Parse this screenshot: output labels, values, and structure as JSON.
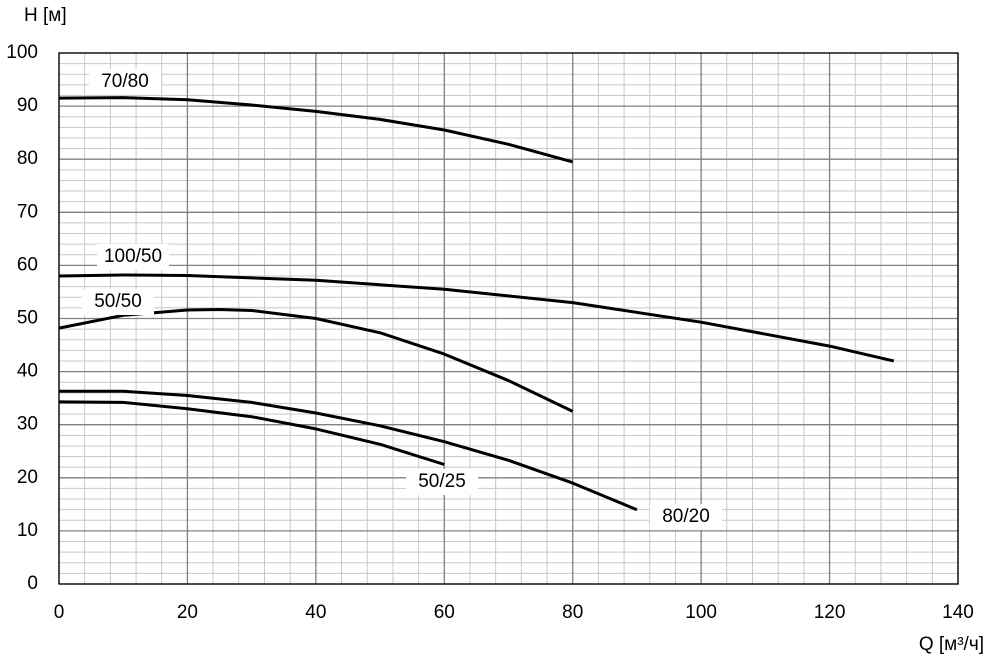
{
  "chart_data": {
    "type": "line",
    "x_label": "Q [м³/ч]",
    "y_label": "H [м]",
    "xlim": [
      0,
      140
    ],
    "xticks": [
      0,
      20,
      40,
      60,
      80,
      100,
      120,
      140
    ],
    "ylim": [
      0,
      100
    ],
    "yticks": [
      0,
      10,
      20,
      30,
      40,
      50,
      60,
      70,
      80,
      90,
      100
    ],
    "grid": true,
    "series": [
      {
        "name": "70/80",
        "color": "#000000",
        "x": [
          0,
          10,
          20,
          30,
          40,
          50,
          60,
          70,
          80
        ],
        "values": [
          91.5,
          91.6,
          91.2,
          90.2,
          89,
          87.5,
          85.5,
          82.8,
          79.5
        ]
      },
      {
        "name": "100/50",
        "color": "#000000",
        "x": [
          0,
          10,
          20,
          40,
          60,
          80,
          100,
          120,
          130
        ],
        "values": [
          58,
          58.2,
          58.1,
          57.2,
          55.5,
          53,
          49.3,
          44.8,
          42
        ]
      },
      {
        "name": "50/50",
        "color": "#000000",
        "x": [
          0,
          10,
          20,
          25,
          30,
          40,
          50,
          60,
          70,
          80
        ],
        "values": [
          48.2,
          50.6,
          51.6,
          51.7,
          51.5,
          50,
          47.3,
          43.3,
          38.3,
          32.5
        ]
      },
      {
        "name": "50/25",
        "color": "#000000",
        "x": [
          0,
          10,
          20,
          30,
          40,
          50,
          60
        ],
        "values": [
          34.3,
          34.2,
          33,
          31.5,
          29.2,
          26.3,
          22.5
        ]
      },
      {
        "name": "80/20",
        "color": "#000000",
        "x": [
          0,
          10,
          20,
          30,
          40,
          50,
          60,
          70,
          80,
          90
        ],
        "values": [
          36.3,
          36.3,
          35.5,
          34.2,
          32.2,
          29.8,
          26.8,
          23.3,
          19,
          14
        ]
      }
    ]
  }
}
